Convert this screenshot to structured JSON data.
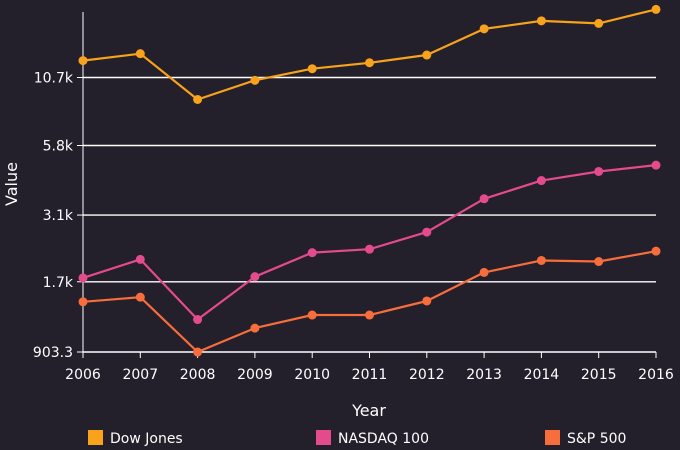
{
  "chart_data": {
    "type": "line",
    "xlabel": "Year",
    "ylabel": "Value",
    "x": [
      2006,
      2007,
      2008,
      2009,
      2010,
      2011,
      2012,
      2013,
      2014,
      2015,
      2016
    ],
    "x_tick_labels": [
      "2006",
      "2007",
      "2008",
      "2009",
      "2010",
      "2011",
      "2012",
      "2013",
      "2014",
      "2015",
      "2016"
    ],
    "y_scale": "log",
    "ylim": [
      903.3,
      19300
    ],
    "y_ticks": [
      903.3,
      1700,
      3100,
      5800,
      10700
    ],
    "y_tick_labels": [
      "903.3",
      "1.7k",
      "3.1k",
      "5.8k",
      "10.7k"
    ],
    "grid": "horizontal",
    "legend_position": "bottom",
    "series": [
      {
        "name": "Dow Jones",
        "color": "#f9a21b",
        "values": [
          12460,
          13260,
          8780,
          10430,
          11580,
          12220,
          13100,
          16580,
          17820,
          17420,
          19760
        ]
      },
      {
        "name": "NASDAQ 100",
        "color": "#e44b8d",
        "values": [
          1760,
          2080,
          1210,
          1780,
          2210,
          2280,
          2660,
          3590,
          4230,
          4590,
          4860
        ]
      },
      {
        "name": "S&P 500",
        "color": "#f76d3c",
        "values": [
          1420,
          1480,
          903,
          1120,
          1260,
          1260,
          1430,
          1850,
          2060,
          2040,
          2240
        ]
      }
    ]
  }
}
